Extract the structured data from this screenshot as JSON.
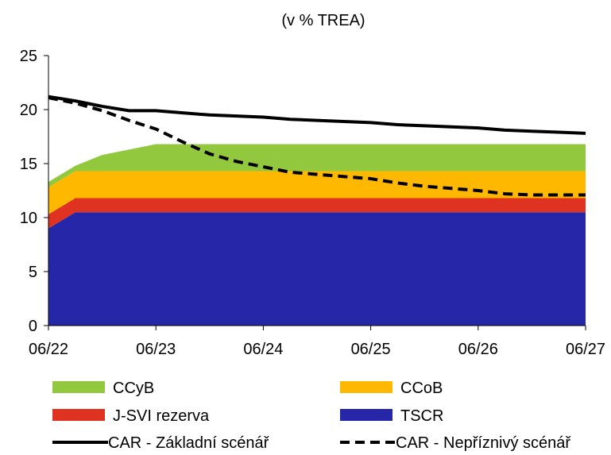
{
  "chart_data": {
    "type": "area",
    "title": "(v % TREA)",
    "x_labels": [
      "06/22",
      "06/23",
      "06/24",
      "06/25",
      "06/26",
      "06/27"
    ],
    "x": [
      "06/22",
      "09/22",
      "12/22",
      "03/23",
      "06/23",
      "09/23",
      "12/23",
      "03/24",
      "06/24",
      "09/24",
      "12/24",
      "03/25",
      "06/25",
      "09/25",
      "12/25",
      "03/26",
      "06/26",
      "09/26",
      "12/26",
      "03/27",
      "06/27"
    ],
    "ylim": [
      0,
      25
    ],
    "yticks": [
      0,
      5,
      10,
      15,
      20,
      25
    ],
    "stacked_areas": [
      {
        "name": "TSCR",
        "color": "#2626A8",
        "values": [
          9.0,
          10.5,
          10.5,
          10.5,
          10.5,
          10.5,
          10.5,
          10.5,
          10.5,
          10.5,
          10.5,
          10.5,
          10.5,
          10.5,
          10.5,
          10.5,
          10.5,
          10.5,
          10.5,
          10.5,
          10.5
        ]
      },
      {
        "name": "J-SVI rezerva",
        "color": "#E03220",
        "values": [
          1.3,
          1.3,
          1.3,
          1.3,
          1.3,
          1.3,
          1.3,
          1.3,
          1.3,
          1.3,
          1.3,
          1.3,
          1.3,
          1.3,
          1.3,
          1.3,
          1.3,
          1.3,
          1.3,
          1.3,
          1.3
        ]
      },
      {
        "name": "CCoB",
        "color": "#FFB800",
        "values": [
          2.5,
          2.5,
          2.5,
          2.5,
          2.5,
          2.5,
          2.5,
          2.5,
          2.5,
          2.5,
          2.5,
          2.5,
          2.5,
          2.5,
          2.5,
          2.5,
          2.5,
          2.5,
          2.5,
          2.5,
          2.5
        ]
      },
      {
        "name": "CCyB",
        "color": "#92C83E",
        "values": [
          0.5,
          0.5,
          1.5,
          2.0,
          2.5,
          2.5,
          2.5,
          2.5,
          2.5,
          2.5,
          2.5,
          2.5,
          2.5,
          2.5,
          2.5,
          2.5,
          2.5,
          2.5,
          2.5,
          2.5,
          2.5
        ]
      }
    ],
    "lines": [
      {
        "name": "CAR - Základní scénář",
        "color": "#000000",
        "dash": "solid",
        "values": [
          21.2,
          20.8,
          20.3,
          19.9,
          19.9,
          19.7,
          19.5,
          19.4,
          19.3,
          19.1,
          19.0,
          18.9,
          18.8,
          18.6,
          18.5,
          18.4,
          18.3,
          18.1,
          18.0,
          17.9,
          17.8
        ]
      },
      {
        "name": "CAR - Nepříznivý scénář",
        "color": "#000000",
        "dash": "dashed",
        "values": [
          21.1,
          20.6,
          19.9,
          19.0,
          18.2,
          17.0,
          15.9,
          15.2,
          14.7,
          14.2,
          14.0,
          13.8,
          13.6,
          13.2,
          12.9,
          12.7,
          12.5,
          12.2,
          12.1,
          12.1,
          12.1
        ]
      }
    ],
    "legend": {
      "placement": "bottom",
      "entries": [
        {
          "label": "CCyB",
          "kind": "area",
          "color": "#92C83E"
        },
        {
          "label": "CCoB",
          "kind": "area",
          "color": "#FFB800"
        },
        {
          "label": "J-SVI rezerva",
          "kind": "area",
          "color": "#E03220"
        },
        {
          "label": "TSCR",
          "kind": "area",
          "color": "#2626A8"
        },
        {
          "label": "CAR - Základní scénář",
          "kind": "line",
          "dash": "solid",
          "color": "#000000"
        },
        {
          "label": "CAR - Nepříznivý scénář",
          "kind": "line",
          "dash": "dashed",
          "color": "#000000"
        }
      ]
    },
    "grid": false
  }
}
